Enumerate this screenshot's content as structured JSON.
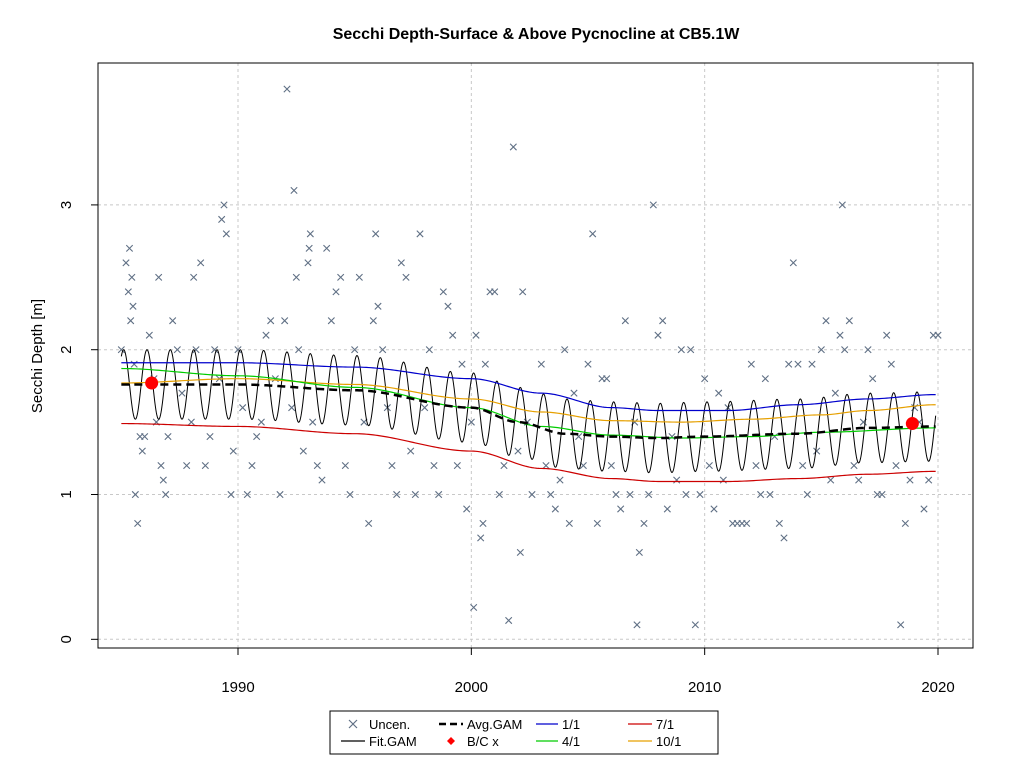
{
  "chart_data": {
    "type": "line",
    "title": "Secchi Depth-Surface & Above Pycnocline at CB5.1W",
    "xlabel": "",
    "ylabel": "Secchi Depth [m]",
    "xlim": [
      1984,
      2021.5
    ],
    "ylim": [
      -0.06,
      3.98
    ],
    "x_ticks": [
      1990,
      2000,
      2010,
      2020
    ],
    "y_ticks": [
      0,
      1,
      2,
      3
    ],
    "grid": true,
    "legend_position": "bottom",
    "legend": {
      "uncen": "Uncen.",
      "fit_gam": "Fit.GAM",
      "avg_gam": "Avg.GAM",
      "bc": "B/C x",
      "s1": "1/1",
      "s4": "4/1",
      "s7": "7/1",
      "s10": "10/1"
    },
    "colors": {
      "points": "#607085",
      "fit": "#000000",
      "avg": "#000000",
      "bc": "#ff0000",
      "s1": "#0000cc",
      "s4": "#00cc00",
      "s7": "#cc0000",
      "s10": "#e6a000",
      "grid": "#c8c8c8"
    },
    "observations": [
      [
        1985.0,
        2.0
      ],
      [
        1985.2,
        2.6
      ],
      [
        1985.3,
        2.4
      ],
      [
        1985.35,
        2.7
      ],
      [
        1985.4,
        2.2
      ],
      [
        1985.45,
        2.5
      ],
      [
        1985.5,
        2.3
      ],
      [
        1985.55,
        1.9
      ],
      [
        1985.6,
        1.0
      ],
      [
        1985.7,
        0.8
      ],
      [
        1985.8,
        1.4
      ],
      [
        1985.9,
        1.3
      ],
      [
        1986.0,
        1.4
      ],
      [
        1986.2,
        2.1
      ],
      [
        1986.4,
        1.8
      ],
      [
        1986.5,
        1.5
      ],
      [
        1986.6,
        2.5
      ],
      [
        1986.7,
        1.2
      ],
      [
        1986.8,
        1.1
      ],
      [
        1986.9,
        1.0
      ],
      [
        1987.0,
        1.4
      ],
      [
        1987.2,
        2.2
      ],
      [
        1987.4,
        2.0
      ],
      [
        1987.6,
        1.7
      ],
      [
        1987.8,
        1.2
      ],
      [
        1988.0,
        1.5
      ],
      [
        1988.1,
        2.5
      ],
      [
        1988.2,
        2.0
      ],
      [
        1988.4,
        2.6
      ],
      [
        1988.6,
        1.2
      ],
      [
        1988.8,
        1.4
      ],
      [
        1989.0,
        2.0
      ],
      [
        1989.2,
        1.8
      ],
      [
        1989.3,
        2.9
      ],
      [
        1989.4,
        3.0
      ],
      [
        1989.5,
        2.8
      ],
      [
        1989.7,
        1.0
      ],
      [
        1989.8,
        1.3
      ],
      [
        1990.0,
        2.0
      ],
      [
        1990.2,
        1.6
      ],
      [
        1990.4,
        1.0
      ],
      [
        1990.6,
        1.2
      ],
      [
        1990.8,
        1.4
      ],
      [
        1991.0,
        1.5
      ],
      [
        1991.2,
        2.1
      ],
      [
        1991.4,
        2.2
      ],
      [
        1991.6,
        1.8
      ],
      [
        1991.8,
        1.0
      ],
      [
        1992.0,
        2.2
      ],
      [
        1992.1,
        3.8
      ],
      [
        1992.3,
        1.6
      ],
      [
        1992.4,
        3.1
      ],
      [
        1992.5,
        2.5
      ],
      [
        1992.6,
        2.0
      ],
      [
        1992.8,
        1.3
      ],
      [
        1993.0,
        2.6
      ],
      [
        1993.05,
        2.7
      ],
      [
        1993.1,
        2.8
      ],
      [
        1993.2,
        1.5
      ],
      [
        1993.4,
        1.2
      ],
      [
        1993.6,
        1.1
      ],
      [
        1993.8,
        2.7
      ],
      [
        1994.0,
        2.2
      ],
      [
        1994.2,
        2.4
      ],
      [
        1994.4,
        2.5
      ],
      [
        1994.6,
        1.2
      ],
      [
        1994.8,
        1.0
      ],
      [
        1995.0,
        2.0
      ],
      [
        1995.2,
        2.5
      ],
      [
        1995.4,
        1.5
      ],
      [
        1995.6,
        0.8
      ],
      [
        1995.8,
        2.2
      ],
      [
        1995.9,
        2.8
      ],
      [
        1996.0,
        2.3
      ],
      [
        1996.2,
        2.0
      ],
      [
        1996.4,
        1.6
      ],
      [
        1996.6,
        1.2
      ],
      [
        1996.8,
        1.0
      ],
      [
        1997.0,
        2.6
      ],
      [
        1997.2,
        2.5
      ],
      [
        1997.4,
        1.3
      ],
      [
        1997.6,
        1.0
      ],
      [
        1997.8,
        2.8
      ],
      [
        1998.0,
        1.6
      ],
      [
        1998.2,
        2.0
      ],
      [
        1998.4,
        1.2
      ],
      [
        1998.6,
        1.0
      ],
      [
        1998.8,
        2.4
      ],
      [
        1999.0,
        2.3
      ],
      [
        1999.2,
        2.1
      ],
      [
        1999.4,
        1.2
      ],
      [
        1999.6,
        1.9
      ],
      [
        1999.8,
        0.9
      ],
      [
        2000.0,
        1.5
      ],
      [
        2000.1,
        0.22
      ],
      [
        2000.2,
        2.1
      ],
      [
        2000.4,
        0.7
      ],
      [
        2000.5,
        0.8
      ],
      [
        2000.6,
        1.9
      ],
      [
        2000.8,
        2.4
      ],
      [
        2001.0,
        2.4
      ],
      [
        2001.2,
        1.0
      ],
      [
        2001.4,
        1.2
      ],
      [
        2001.6,
        0.13
      ],
      [
        2001.8,
        3.4
      ],
      [
        2002.0,
        1.3
      ],
      [
        2002.1,
        0.6
      ],
      [
        2002.2,
        2.4
      ],
      [
        2002.4,
        1.5
      ],
      [
        2002.6,
        1.0
      ],
      [
        2003.0,
        1.9
      ],
      [
        2003.2,
        1.2
      ],
      [
        2003.4,
        1.0
      ],
      [
        2003.6,
        0.9
      ],
      [
        2003.8,
        1.1
      ],
      [
        2004.0,
        2.0
      ],
      [
        2004.2,
        0.8
      ],
      [
        2004.4,
        1.7
      ],
      [
        2004.6,
        1.4
      ],
      [
        2004.8,
        1.2
      ],
      [
        2005.0,
        1.9
      ],
      [
        2005.2,
        2.8
      ],
      [
        2005.4,
        0.8
      ],
      [
        2005.6,
        1.8
      ],
      [
        2005.8,
        1.8
      ],
      [
        2006.0,
        1.2
      ],
      [
        2006.2,
        1.0
      ],
      [
        2006.4,
        0.9
      ],
      [
        2006.6,
        2.2
      ],
      [
        2006.8,
        1.0
      ],
      [
        2007.0,
        1.5
      ],
      [
        2007.1,
        0.1
      ],
      [
        2007.2,
        0.6
      ],
      [
        2007.4,
        0.8
      ],
      [
        2007.6,
        1.0
      ],
      [
        2007.8,
        3.0
      ],
      [
        2008.0,
        2.1
      ],
      [
        2008.2,
        2.2
      ],
      [
        2008.4,
        0.9
      ],
      [
        2008.6,
        1.4
      ],
      [
        2008.8,
        1.1
      ],
      [
        2009.0,
        2.0
      ],
      [
        2009.2,
        1.0
      ],
      [
        2009.4,
        2.0
      ],
      [
        2009.6,
        0.1
      ],
      [
        2009.8,
        1.0
      ],
      [
        2010.0,
        1.8
      ],
      [
        2010.2,
        1.2
      ],
      [
        2010.4,
        0.9
      ],
      [
        2010.6,
        1.7
      ],
      [
        2010.8,
        1.1
      ],
      [
        2011.0,
        1.6
      ],
      [
        2011.2,
        0.8
      ],
      [
        2011.4,
        0.8
      ],
      [
        2011.6,
        0.8
      ],
      [
        2011.8,
        0.8
      ],
      [
        2012.0,
        1.9
      ],
      [
        2012.2,
        1.2
      ],
      [
        2012.4,
        1.0
      ],
      [
        2012.6,
        1.8
      ],
      [
        2012.8,
        1.0
      ],
      [
        2013.0,
        1.4
      ],
      [
        2013.2,
        0.8
      ],
      [
        2013.4,
        0.7
      ],
      [
        2013.6,
        1.9
      ],
      [
        2013.8,
        2.6
      ],
      [
        2014.0,
        1.9
      ],
      [
        2014.2,
        1.2
      ],
      [
        2014.4,
        1.0
      ],
      [
        2014.6,
        1.9
      ],
      [
        2014.8,
        1.3
      ],
      [
        2015.0,
        2.0
      ],
      [
        2015.2,
        2.2
      ],
      [
        2015.4,
        1.1
      ],
      [
        2015.6,
        1.7
      ],
      [
        2015.8,
        2.1
      ],
      [
        2015.9,
        3.0
      ],
      [
        2016.0,
        2.0
      ],
      [
        2016.2,
        2.2
      ],
      [
        2016.4,
        1.2
      ],
      [
        2016.6,
        1.1
      ],
      [
        2016.8,
        1.5
      ],
      [
        2017.0,
        2.0
      ],
      [
        2017.2,
        1.8
      ],
      [
        2017.4,
        1.0
      ],
      [
        2017.6,
        1.0
      ],
      [
        2017.8,
        2.1
      ],
      [
        2018.0,
        1.9
      ],
      [
        2018.2,
        1.2
      ],
      [
        2018.4,
        0.1
      ],
      [
        2018.6,
        0.8
      ],
      [
        2018.8,
        1.1
      ],
      [
        2019.0,
        1.6
      ],
      [
        2019.2,
        1.5
      ],
      [
        2019.4,
        0.9
      ],
      [
        2019.6,
        1.1
      ],
      [
        2019.8,
        2.1
      ],
      [
        2020.0,
        2.1
      ]
    ],
    "fit_gam": {
      "x_start": 1985.0,
      "x_end": 2019.9,
      "cycles_per_year": 1,
      "amplitude": 0.24,
      "phase": 0.1,
      "baseline": [
        [
          1985.0,
          1.76
        ],
        [
          1990.0,
          1.76
        ],
        [
          1995.0,
          1.72
        ],
        [
          2000.0,
          1.6
        ],
        [
          2002.0,
          1.5
        ],
        [
          2004.0,
          1.42
        ],
        [
          2006.0,
          1.4
        ],
        [
          2008.0,
          1.39
        ],
        [
          2010.0,
          1.4
        ],
        [
          2014.0,
          1.42
        ],
        [
          2017.0,
          1.46
        ],
        [
          2019.9,
          1.47
        ]
      ]
    },
    "series": [
      {
        "name": "Avg.GAM",
        "key": "avg",
        "dashed": true,
        "points": [
          [
            1985.0,
            1.76
          ],
          [
            1990.0,
            1.76
          ],
          [
            1995.0,
            1.72
          ],
          [
            2000.0,
            1.6
          ],
          [
            2002.0,
            1.5
          ],
          [
            2004.0,
            1.42
          ],
          [
            2006.0,
            1.4
          ],
          [
            2008.0,
            1.39
          ],
          [
            2010.0,
            1.4
          ],
          [
            2014.0,
            1.42
          ],
          [
            2017.0,
            1.46
          ],
          [
            2019.9,
            1.47
          ]
        ]
      },
      {
        "name": "1/1",
        "key": "s1",
        "points": [
          [
            1985.0,
            1.91
          ],
          [
            1990.0,
            1.91
          ],
          [
            1995.0,
            1.88
          ],
          [
            2000.0,
            1.8
          ],
          [
            2003.0,
            1.7
          ],
          [
            2006.0,
            1.6
          ],
          [
            2008.0,
            1.58
          ],
          [
            2011.0,
            1.58
          ],
          [
            2014.0,
            1.62
          ],
          [
            2017.0,
            1.66
          ],
          [
            2019.9,
            1.69
          ]
        ]
      },
      {
        "name": "4/1",
        "key": "s4",
        "points": [
          [
            1985.0,
            1.87
          ],
          [
            1990.0,
            1.82
          ],
          [
            1995.0,
            1.74
          ],
          [
            2000.0,
            1.6
          ],
          [
            2003.0,
            1.47
          ],
          [
            2006.0,
            1.41
          ],
          [
            2009.0,
            1.39
          ],
          [
            2012.0,
            1.4
          ],
          [
            2015.0,
            1.43
          ],
          [
            2019.9,
            1.46
          ]
        ]
      },
      {
        "name": "7/1",
        "key": "s7",
        "points": [
          [
            1985.0,
            1.49
          ],
          [
            1990.0,
            1.47
          ],
          [
            1995.0,
            1.42
          ],
          [
            2000.0,
            1.3
          ],
          [
            2003.0,
            1.18
          ],
          [
            2006.0,
            1.11
          ],
          [
            2008.0,
            1.09
          ],
          [
            2011.0,
            1.09
          ],
          [
            2014.0,
            1.11
          ],
          [
            2017.0,
            1.14
          ],
          [
            2019.9,
            1.16
          ]
        ]
      },
      {
        "name": "10/1",
        "key": "s10",
        "points": [
          [
            1985.0,
            1.77
          ],
          [
            1990.0,
            1.8
          ],
          [
            1995.0,
            1.76
          ],
          [
            2000.0,
            1.66
          ],
          [
            2003.0,
            1.57
          ],
          [
            2006.0,
            1.51
          ],
          [
            2009.0,
            1.5
          ],
          [
            2012.0,
            1.52
          ],
          [
            2015.0,
            1.55
          ],
          [
            2017.0,
            1.58
          ],
          [
            2019.9,
            1.62
          ]
        ]
      }
    ],
    "bc_points": [
      [
        1986.3,
        1.77
      ],
      [
        2018.9,
        1.49
      ]
    ]
  }
}
